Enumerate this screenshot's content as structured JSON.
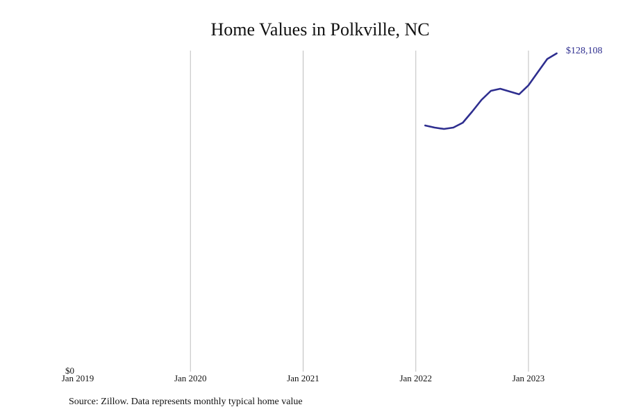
{
  "title": "Home Values in Polkville, NC",
  "source": "Source: Zillow. Data represents monthly typical home value",
  "colors": {
    "line": "#2e2e8f",
    "grid": "#bdbdbd",
    "text": "#111111"
  },
  "end_label": "$128,108",
  "y_zero_label": "$0",
  "chart_data": {
    "type": "line",
    "title": "Home Values in Polkville, NC",
    "xlabel": "",
    "ylabel": "",
    "x_ticks": [
      "Jan 2019",
      "Jan 2020",
      "Jan 2021",
      "Jan 2022",
      "Jan 2023"
    ],
    "y_ticks": [
      "$0"
    ],
    "ylim": [
      0,
      128108
    ],
    "grid": {
      "vertical": true,
      "horizontal": false
    },
    "legend": null,
    "series": [
      {
        "name": "Typical home value",
        "x": [
          "2022-02",
          "2022-03",
          "2022-04",
          "2022-05",
          "2022-06",
          "2022-07",
          "2022-08",
          "2022-09",
          "2022-10",
          "2022-11",
          "2022-12",
          "2023-01",
          "2023-02",
          "2023-03",
          "2023-04"
        ],
        "values": [
          98950,
          98100,
          97550,
          98100,
          100070,
          104550,
          109320,
          112960,
          113800,
          112680,
          111560,
          115200,
          120530,
          125850,
          128108
        ]
      }
    ],
    "annotations": [
      {
        "text": "$128,108",
        "at": "2023-04"
      }
    ]
  }
}
